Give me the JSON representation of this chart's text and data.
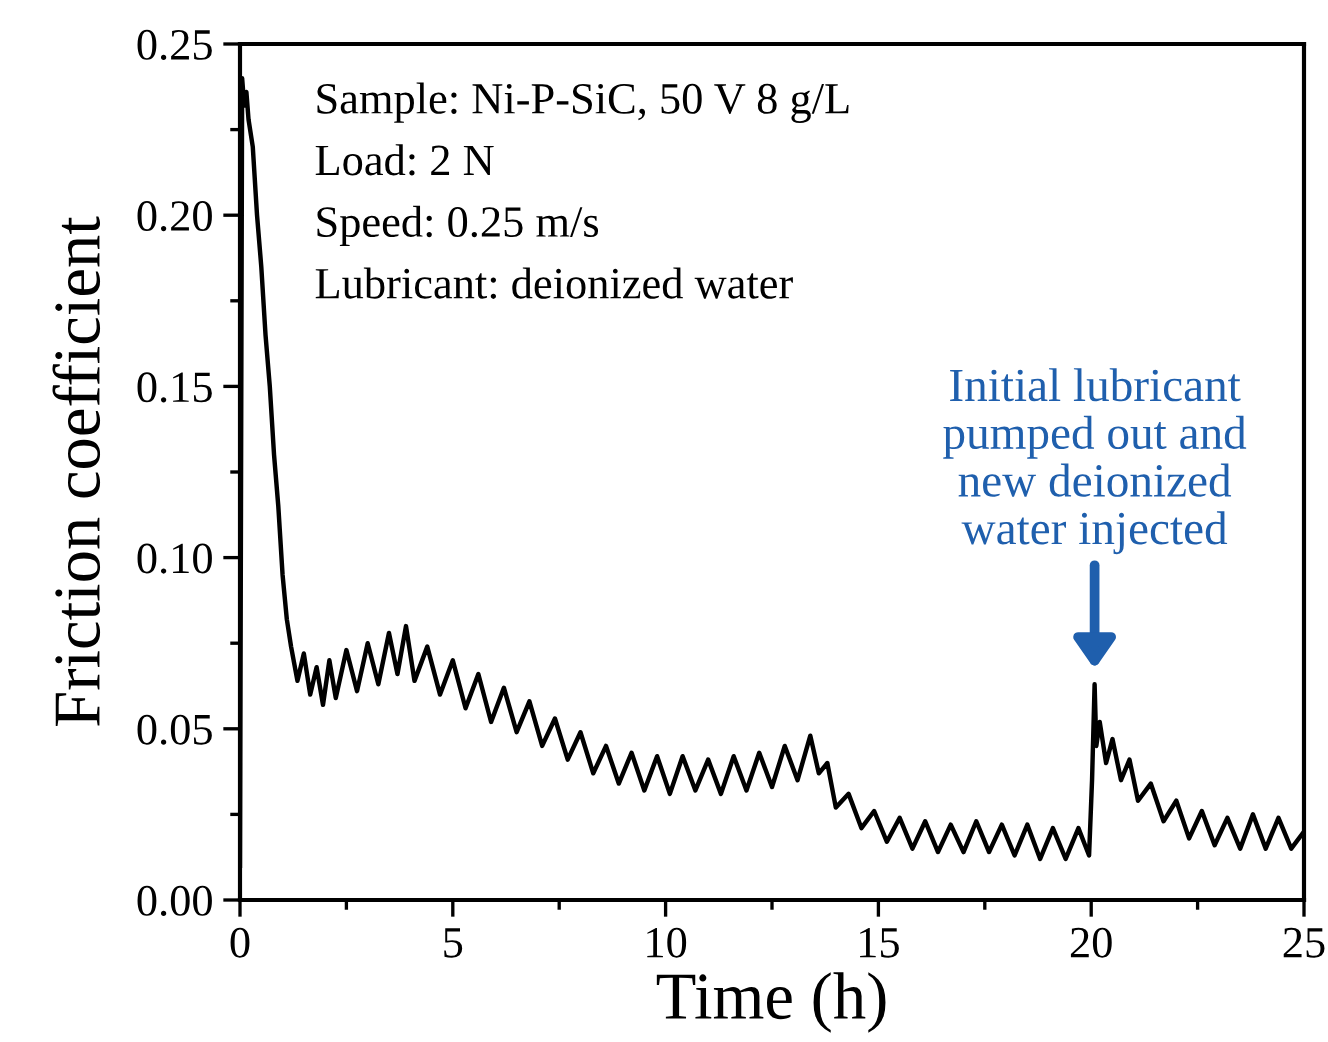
{
  "chart_data": {
    "type": "line",
    "xlabel": "Time (h)",
    "ylabel": "Friction coefficient",
    "xlim": [
      0,
      25
    ],
    "xticks": [
      0,
      5,
      10,
      15,
      20,
      25
    ],
    "ylim": [
      0,
      0.25
    ],
    "yticks": [
      {
        "value": 0,
        "label": "0.00"
      },
      {
        "value": 0.05,
        "label": "0.05"
      },
      {
        "value": 0.1,
        "label": "0.10"
      },
      {
        "value": 0.15,
        "label": "0.15"
      },
      {
        "value": 0.2,
        "label": "0.20"
      },
      {
        "value": 0.25,
        "label": "0.25"
      }
    ],
    "grid": false,
    "legend": false,
    "marker": "none",
    "line_style": "solid",
    "annotations": [
      "Sample: Ni-P-SiC, 50 V 8 g/L",
      "Load: 2 N",
      "Speed: 0.25 m/s",
      "Lubricant: deionized water",
      {
        "text": "Initial lubricant\npumped out and\nnew deionized\nwater injected",
        "x": 20.08,
        "y": 0.065
      }
    ],
    "series": [
      {
        "color": "#000000",
        "x": [
          0,
          0.05,
          0.1,
          0.15,
          0.2,
          0.3,
          0.4,
          0.5,
          0.6,
          0.7,
          0.8,
          0.9,
          1.0,
          1.1,
          1.2,
          1.35,
          1.5,
          1.65,
          1.8,
          1.95,
          2.1,
          2.25,
          2.5,
          2.75,
          3.0,
          3.25,
          3.5,
          3.7,
          3.9,
          4.1,
          4.4,
          4.7,
          5.0,
          5.3,
          5.6,
          5.9,
          6.2,
          6.5,
          6.8,
          7.1,
          7.4,
          7.7,
          8.0,
          8.3,
          8.6,
          8.9,
          9.2,
          9.5,
          9.8,
          10.1,
          10.4,
          10.7,
          11.0,
          11.3,
          11.6,
          11.9,
          12.2,
          12.5,
          12.8,
          13.1,
          13.4,
          13.6,
          13.8,
          14.0,
          14.3,
          14.6,
          14.9,
          15.2,
          15.5,
          15.8,
          16.1,
          16.4,
          16.7,
          17.0,
          17.3,
          17.6,
          17.9,
          18.2,
          18.5,
          18.8,
          19.1,
          19.4,
          19.7,
          19.95,
          20.02,
          20.08,
          20.12,
          20.2,
          20.35,
          20.5,
          20.7,
          20.9,
          21.1,
          21.4,
          21.7,
          22.0,
          22.3,
          22.6,
          22.9,
          23.2,
          23.5,
          23.8,
          24.1,
          24.4,
          24.7,
          25.0
        ],
        "values": [
          0.01,
          0.24,
          0.232,
          0.236,
          0.228,
          0.22,
          0.2,
          0.185,
          0.165,
          0.15,
          0.13,
          0.115,
          0.095,
          0.082,
          0.074,
          0.064,
          0.072,
          0.06,
          0.068,
          0.057,
          0.07,
          0.059,
          0.073,
          0.061,
          0.075,
          0.063,
          0.078,
          0.066,
          0.08,
          0.064,
          0.074,
          0.06,
          0.07,
          0.056,
          0.066,
          0.052,
          0.062,
          0.049,
          0.058,
          0.045,
          0.053,
          0.041,
          0.049,
          0.037,
          0.045,
          0.034,
          0.043,
          0.032,
          0.042,
          0.031,
          0.042,
          0.032,
          0.041,
          0.031,
          0.042,
          0.032,
          0.043,
          0.033,
          0.045,
          0.035,
          0.048,
          0.037,
          0.04,
          0.027,
          0.031,
          0.021,
          0.026,
          0.017,
          0.024,
          0.015,
          0.023,
          0.014,
          0.022,
          0.014,
          0.023,
          0.014,
          0.022,
          0.013,
          0.022,
          0.012,
          0.021,
          0.012,
          0.021,
          0.013,
          0.035,
          0.063,
          0.045,
          0.052,
          0.04,
          0.047,
          0.035,
          0.041,
          0.029,
          0.034,
          0.023,
          0.029,
          0.018,
          0.026,
          0.016,
          0.024,
          0.015,
          0.025,
          0.015,
          0.024,
          0.015,
          0.02
        ]
      }
    ]
  }
}
